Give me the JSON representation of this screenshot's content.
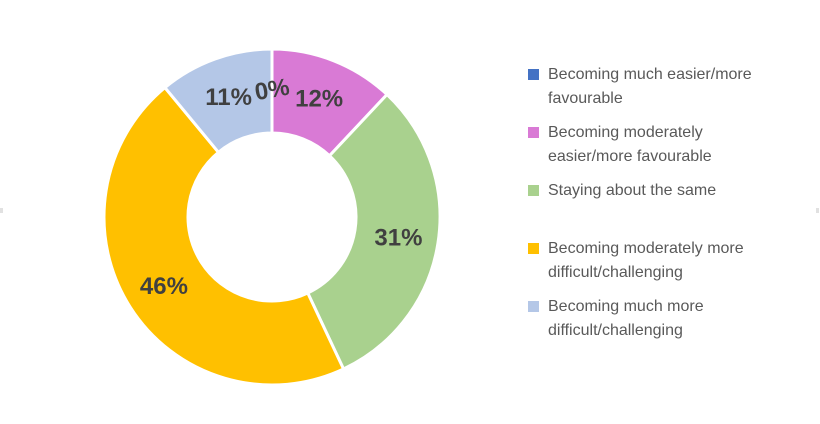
{
  "chart_data": {
    "type": "pie",
    "subtype": "doughnut",
    "title": "",
    "slices": [
      {
        "name": "Becoming much easier/more favourable",
        "value": 0,
        "percent_label": "0%",
        "color": "#4472C4"
      },
      {
        "name": "Becoming moderately easier/more favourable",
        "value": 12,
        "percent_label": "12%",
        "color": "#D97AD5"
      },
      {
        "name": "Staying about the same",
        "value": 31,
        "percent_label": "31%",
        "color": "#A9D18E"
      },
      {
        "name": "Becoming moderately more difficult/challenging",
        "value": 46,
        "percent_label": "46%",
        "color": "#FFC000"
      },
      {
        "name": "Becoming much more difficult/challenging",
        "value": 11,
        "percent_label": "11%",
        "color": "#B4C7E7"
      }
    ],
    "start_angle_deg": 0,
    "direction": "clockwise",
    "hole_ratio": 0.5,
    "legend_position": "right",
    "grid": false,
    "data_label_color": "#404040",
    "zero_label_rotation_deg": -10
  },
  "legend": {
    "text_color": "#595959"
  }
}
